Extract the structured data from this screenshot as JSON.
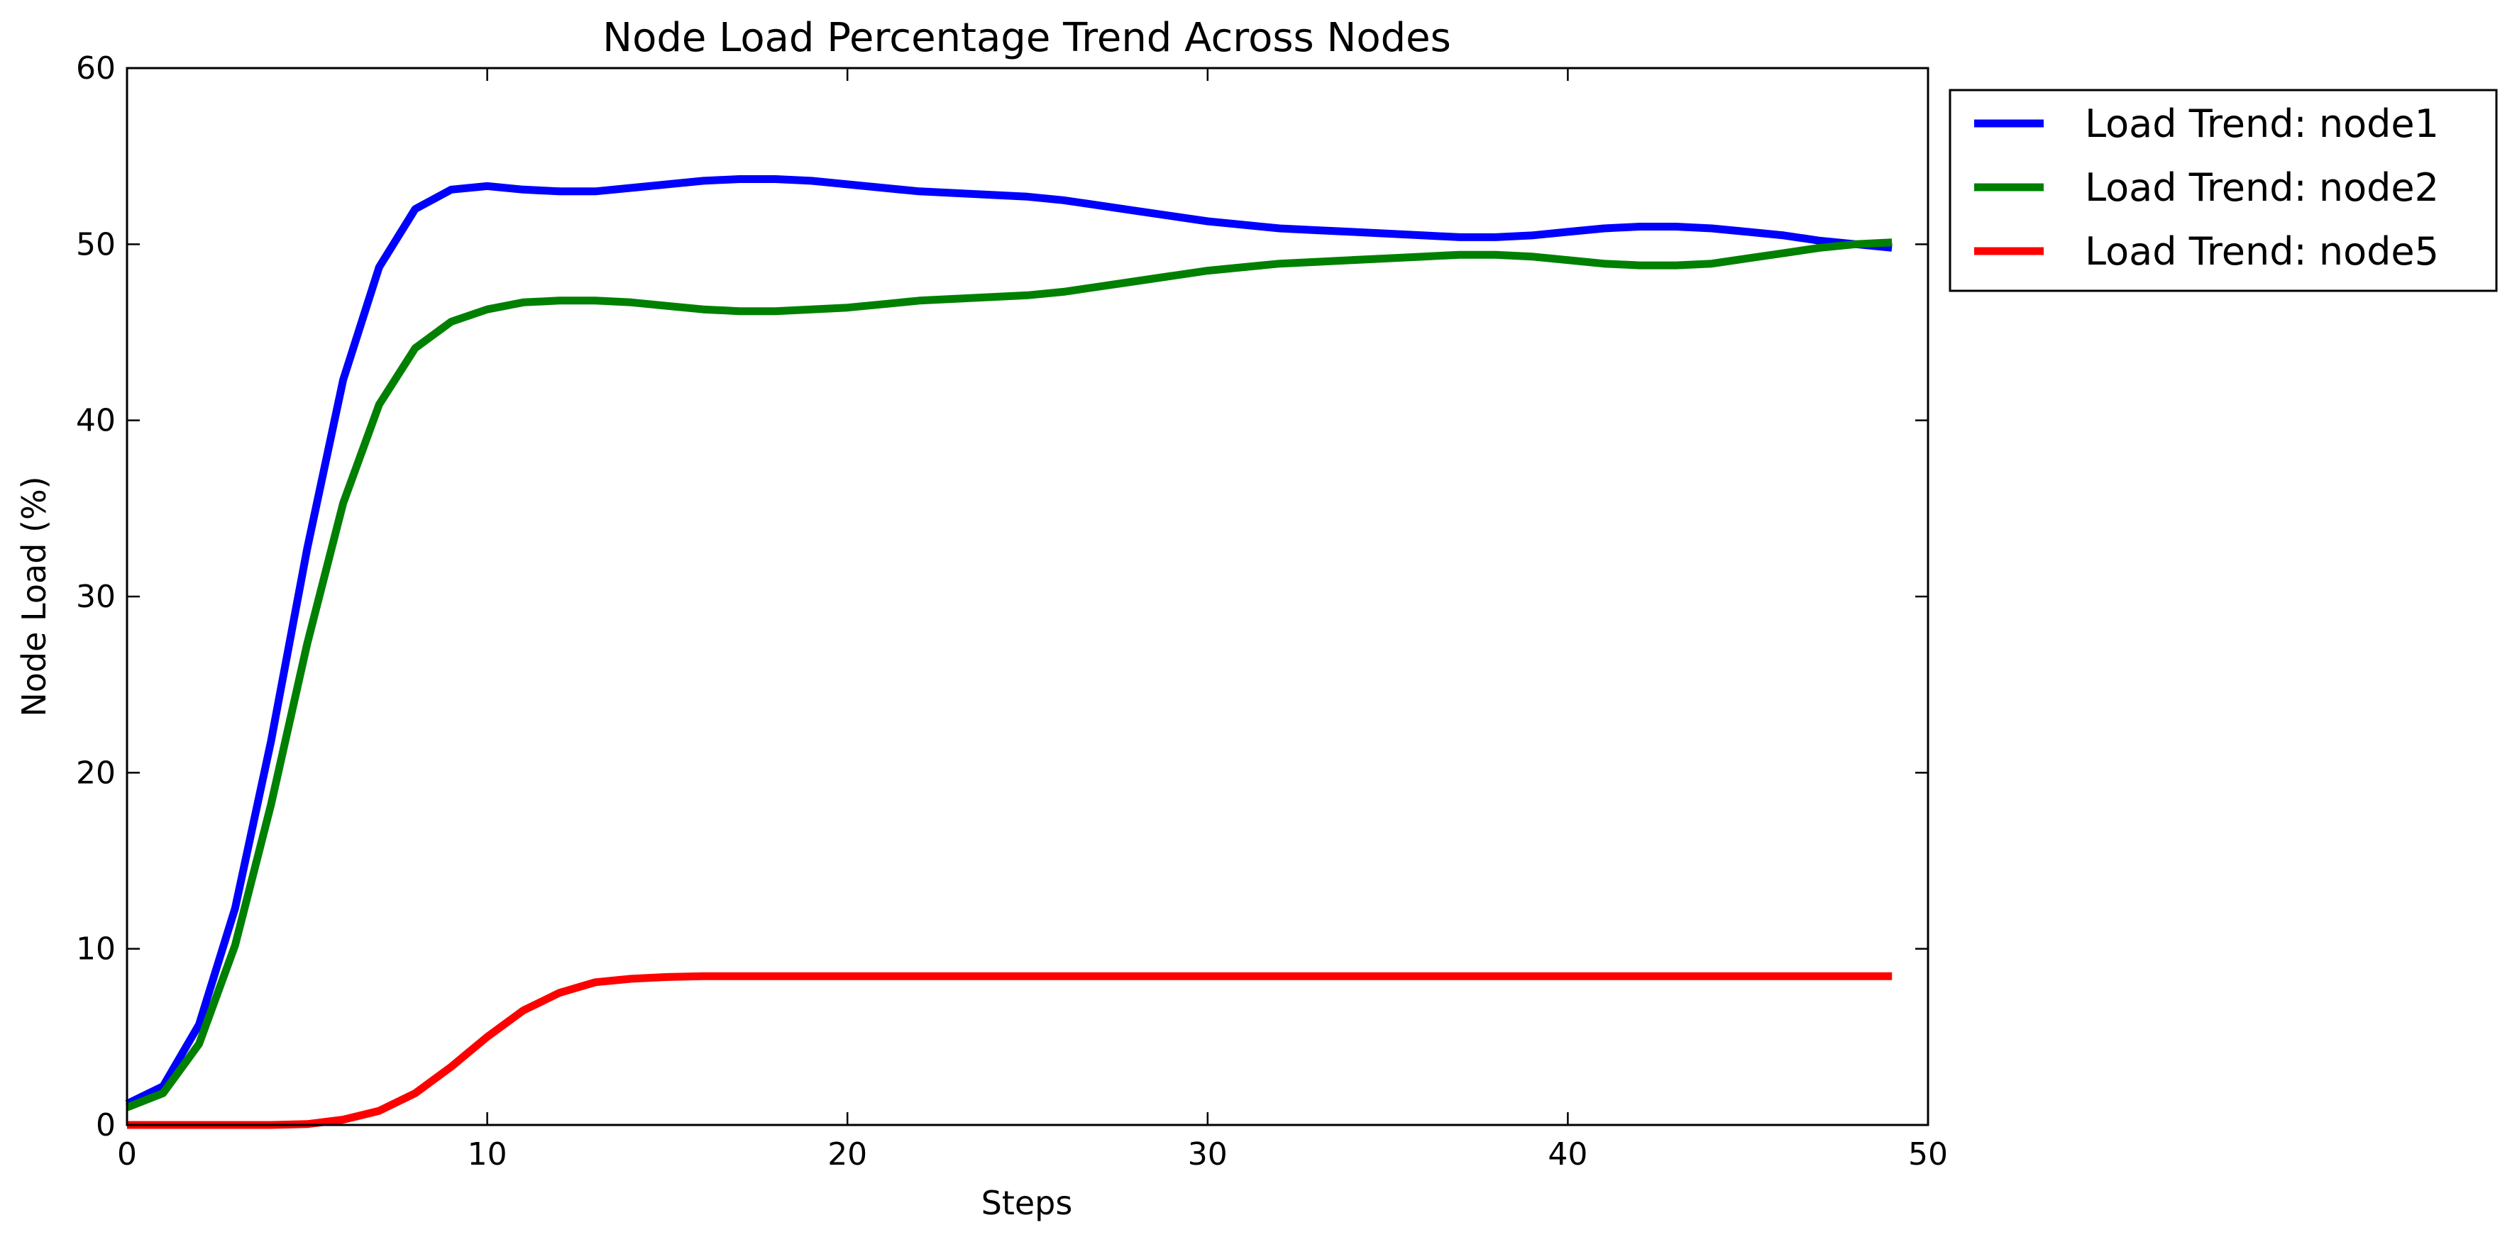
{
  "chart_data": {
    "type": "line",
    "title": "Node Load Percentage Trend Across Nodes",
    "xlabel": "Steps",
    "ylabel": "Node Load (%)",
    "xlim": [
      0,
      50
    ],
    "ylim": [
      0,
      60
    ],
    "xticks": [
      0,
      10,
      20,
      30,
      40,
      50
    ],
    "yticks": [
      0,
      10,
      20,
      30,
      40,
      50,
      60
    ],
    "grid": false,
    "legend_position": "outside-top-right",
    "x": [
      0,
      1,
      2,
      3,
      4,
      5,
      6,
      7,
      8,
      9,
      10,
      11,
      12,
      13,
      14,
      15,
      16,
      17,
      18,
      19,
      20,
      21,
      22,
      23,
      24,
      25,
      26,
      27,
      28,
      29,
      30,
      31,
      32,
      33,
      34,
      35,
      36,
      37,
      38,
      39,
      40,
      41,
      42,
      43,
      44,
      45,
      46,
      47,
      48,
      49
    ],
    "series": [
      {
        "name": "Load Trend: node1",
        "color": "#0000ff",
        "values": [
          1.2,
          2.2,
          5.7,
          12.3,
          21.8,
          32.7,
          42.3,
          48.7,
          52.0,
          53.1,
          53.3,
          53.1,
          53.0,
          53.0,
          53.2,
          53.4,
          53.6,
          53.7,
          53.7,
          53.6,
          53.4,
          53.2,
          53.0,
          52.9,
          52.8,
          52.7,
          52.5,
          52.2,
          51.9,
          51.6,
          51.3,
          51.1,
          50.9,
          50.8,
          50.7,
          50.6,
          50.5,
          50.4,
          50.4,
          50.5,
          50.7,
          50.9,
          51.0,
          51.0,
          50.9,
          50.7,
          50.5,
          50.2,
          50.0,
          49.8
        ]
      },
      {
        "name": "Load Trend: node2",
        "color": "#008000",
        "values": [
          1.0,
          1.8,
          4.6,
          10.2,
          18.2,
          27.3,
          35.3,
          40.9,
          44.1,
          45.6,
          46.3,
          46.7,
          46.8,
          46.8,
          46.7,
          46.5,
          46.3,
          46.2,
          46.2,
          46.3,
          46.4,
          46.6,
          46.8,
          46.9,
          47.0,
          47.1,
          47.3,
          47.6,
          47.9,
          48.2,
          48.5,
          48.7,
          48.9,
          49.0,
          49.1,
          49.2,
          49.3,
          49.4,
          49.4,
          49.3,
          49.1,
          48.9,
          48.8,
          48.8,
          48.9,
          49.2,
          49.5,
          49.8,
          50.0,
          50.1
        ]
      },
      {
        "name": "Load Trend: node5",
        "color": "#ff0000",
        "values": [
          0.0,
          0.0,
          0.0,
          0.0,
          0.0,
          0.05,
          0.3,
          0.8,
          1.8,
          3.3,
          5.0,
          6.5,
          7.5,
          8.1,
          8.3,
          8.4,
          8.45,
          8.45,
          8.45,
          8.45,
          8.45,
          8.45,
          8.45,
          8.45,
          8.45,
          8.45,
          8.45,
          8.45,
          8.45,
          8.45,
          8.45,
          8.45,
          8.45,
          8.45,
          8.45,
          8.45,
          8.45,
          8.45,
          8.45,
          8.45,
          8.45,
          8.45,
          8.45,
          8.45,
          8.45,
          8.45,
          8.45,
          8.45,
          8.45,
          8.45
        ]
      }
    ]
  }
}
